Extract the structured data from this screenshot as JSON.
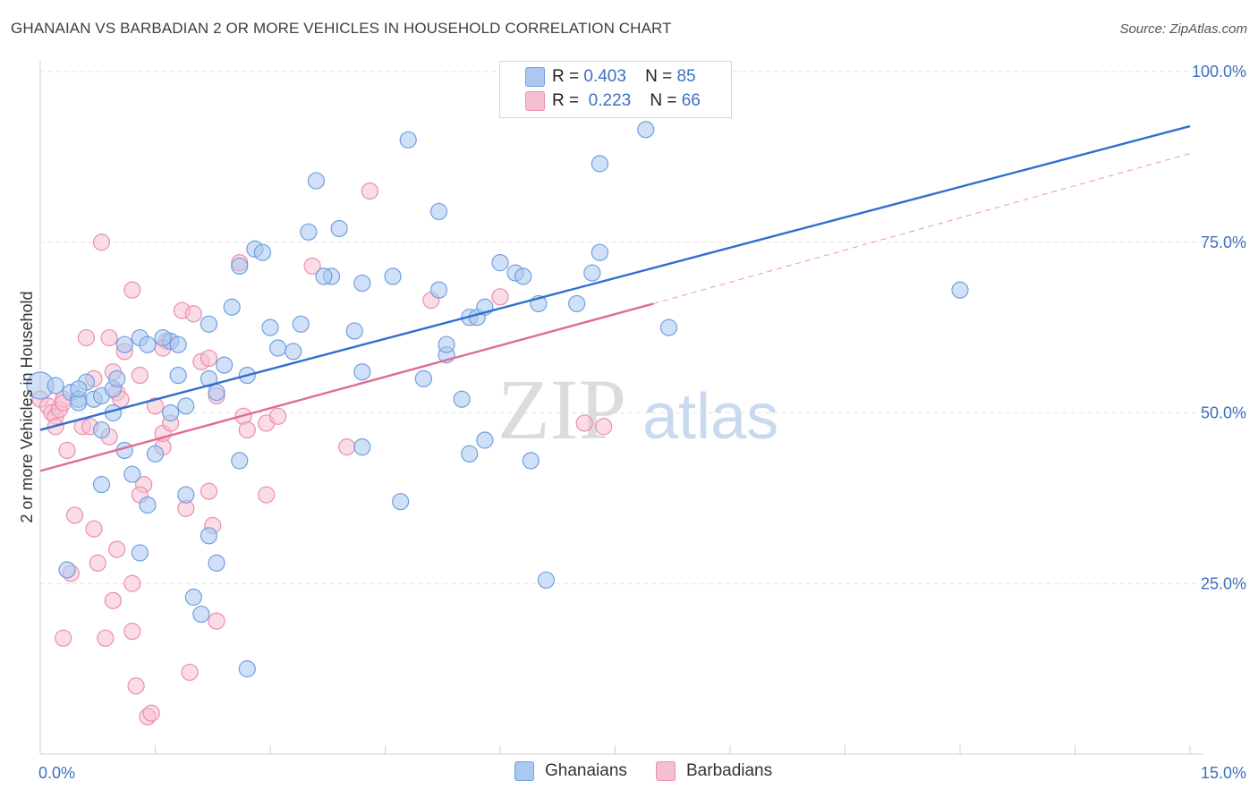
{
  "header": {
    "title": "GHANAIAN VS BARBADIAN 2 OR MORE VEHICLES IN HOUSEHOLD CORRELATION CHART",
    "source": "Source: ZipAtlas.com"
  },
  "watermark": {
    "zip": "ZIP",
    "atlas": "atlas"
  },
  "legend_top": {
    "rows": [
      {
        "r_label": "R =",
        "r_value": "0.403",
        "n_label": "N =",
        "n_value": "85"
      },
      {
        "r_label": "R =",
        "r_value": "0.223",
        "n_label": "N =",
        "n_value": "66"
      }
    ]
  },
  "legend_bottom": {
    "items": [
      "Ghanaians",
      "Barbadians"
    ]
  },
  "colors": {
    "blue_fill": "#aac8f0",
    "blue_stroke": "#6f9fe0",
    "blue_line": "#2f6fcf",
    "pink_fill": "#f6bfd1",
    "pink_stroke": "#ec8eac",
    "pink_line": "#e06a94",
    "tick_label": "#3d6fbf",
    "grid": "#e3e3e3"
  },
  "chart_data": {
    "type": "scatter",
    "title": "GHANAIAN VS BARBADIAN 2 OR MORE VEHICLES IN HOUSEHOLD CORRELATION CHART",
    "xlabel": "",
    "ylabel": "2 or more Vehicles in Household",
    "xlim": [
      0,
      15
    ],
    "ylim": [
      0,
      100
    ],
    "x_tick_labels": [
      "0.0%",
      "15.0%"
    ],
    "y_ticks": [
      25,
      50,
      75,
      100
    ],
    "y_tick_labels": [
      "25.0%",
      "50.0%",
      "75.0%",
      "100.0%"
    ],
    "grid": true,
    "legend_position": "top-center",
    "series": [
      {
        "name": "Ghanaians",
        "color": "#aac8f0",
        "trend": {
          "x0": 0,
          "y0": 47.5,
          "x1": 15,
          "y1": 92.0,
          "dashed_from": null
        },
        "points": [
          [
            0.0,
            54.0
          ],
          [
            0.2,
            54.0
          ],
          [
            0.4,
            53.0
          ],
          [
            0.5,
            52.0
          ],
          [
            0.7,
            52.0
          ],
          [
            0.5,
            51.5
          ],
          [
            0.6,
            54.5
          ],
          [
            0.8,
            52.5
          ],
          [
            0.95,
            53.5
          ],
          [
            1.0,
            55.0
          ],
          [
            0.95,
            50.0
          ],
          [
            0.8,
            47.5
          ],
          [
            1.1,
            44.5
          ],
          [
            0.8,
            39.5
          ],
          [
            1.2,
            41.0
          ],
          [
            1.4,
            36.5
          ],
          [
            1.3,
            29.5
          ],
          [
            0.35,
            27.0
          ],
          [
            1.3,
            61.0
          ],
          [
            1.4,
            60.0
          ],
          [
            1.1,
            60.0
          ],
          [
            1.7,
            60.5
          ],
          [
            1.8,
            55.5
          ],
          [
            1.7,
            50.0
          ],
          [
            1.9,
            51.0
          ],
          [
            1.5,
            44.0
          ],
          [
            1.9,
            38.0
          ],
          [
            2.2,
            63.0
          ],
          [
            2.4,
            57.0
          ],
          [
            2.2,
            55.0
          ],
          [
            2.3,
            53.0
          ],
          [
            2.2,
            32.0
          ],
          [
            2.3,
            28.0
          ],
          [
            2.0,
            23.0
          ],
          [
            2.1,
            20.5
          ],
          [
            2.5,
            65.5
          ],
          [
            2.6,
            71.5
          ],
          [
            2.8,
            74.0
          ],
          [
            2.9,
            73.5
          ],
          [
            3.0,
            62.5
          ],
          [
            2.7,
            55.5
          ],
          [
            2.6,
            43.0
          ],
          [
            3.3,
            59.0
          ],
          [
            3.5,
            76.5
          ],
          [
            3.6,
            84.0
          ],
          [
            3.8,
            70.0
          ],
          [
            3.7,
            70.0
          ],
          [
            3.4,
            63.0
          ],
          [
            3.9,
            77.0
          ],
          [
            4.1,
            62.0
          ],
          [
            4.2,
            69.0
          ],
          [
            4.2,
            56.0
          ],
          [
            4.2,
            45.0
          ],
          [
            4.8,
            90.0
          ],
          [
            4.6,
            70.0
          ],
          [
            4.7,
            37.0
          ],
          [
            5.0,
            55.0
          ],
          [
            5.2,
            79.5
          ],
          [
            5.2,
            68.0
          ],
          [
            5.3,
            58.5
          ],
          [
            5.3,
            60.0
          ],
          [
            5.6,
            64.0
          ],
          [
            5.5,
            52.0
          ],
          [
            5.7,
            64.0
          ],
          [
            5.8,
            65.5
          ],
          [
            6.0,
            72.0
          ],
          [
            6.2,
            70.5
          ],
          [
            6.3,
            70.0
          ],
          [
            5.8,
            46.0
          ],
          [
            5.6,
            44.0
          ],
          [
            6.4,
            43.0
          ],
          [
            6.6,
            25.5
          ],
          [
            7.0,
            66.0
          ],
          [
            7.2,
            70.5
          ],
          [
            7.3,
            73.5
          ],
          [
            7.3,
            86.5
          ],
          [
            7.9,
            91.5
          ],
          [
            8.2,
            62.5
          ],
          [
            12.0,
            68.0
          ],
          [
            2.7,
            12.5
          ],
          [
            1.8,
            60.0
          ],
          [
            0.5,
            53.5
          ],
          [
            3.1,
            59.5
          ],
          [
            6.5,
            66.0
          ],
          [
            1.6,
            61.0
          ]
        ]
      },
      {
        "name": "Barbadians",
        "color": "#f6bfd1",
        "trend": {
          "x0": 0,
          "y0": 41.5,
          "x1": 8.0,
          "y1": 66.0,
          "dashed_from": 8.0,
          "dashed_x1": 15,
          "dashed_y1": 88.0
        },
        "points": [
          [
            0.0,
            52.0
          ],
          [
            0.1,
            51.0
          ],
          [
            0.15,
            50.0
          ],
          [
            0.2,
            49.5
          ],
          [
            0.25,
            50.5
          ],
          [
            0.3,
            52.0
          ],
          [
            0.3,
            51.5
          ],
          [
            0.2,
            48.0
          ],
          [
            0.35,
            44.5
          ],
          [
            0.45,
            35.0
          ],
          [
            0.4,
            26.5
          ],
          [
            0.3,
            17.0
          ],
          [
            0.55,
            48.0
          ],
          [
            0.65,
            48.0
          ],
          [
            0.6,
            61.0
          ],
          [
            0.7,
            55.0
          ],
          [
            0.7,
            33.0
          ],
          [
            0.75,
            28.0
          ],
          [
            0.9,
            46.5
          ],
          [
            0.95,
            56.0
          ],
          [
            1.0,
            53.0
          ],
          [
            1.0,
            30.0
          ],
          [
            0.95,
            22.5
          ],
          [
            0.85,
            17.0
          ],
          [
            0.8,
            75.0
          ],
          [
            1.1,
            59.0
          ],
          [
            1.2,
            68.0
          ],
          [
            1.2,
            18.0
          ],
          [
            1.25,
            10.0
          ],
          [
            1.3,
            55.5
          ],
          [
            1.35,
            39.5
          ],
          [
            1.3,
            38.0
          ],
          [
            1.2,
            25.0
          ],
          [
            1.4,
            5.5
          ],
          [
            1.45,
            6.0
          ],
          [
            1.5,
            51.0
          ],
          [
            1.6,
            45.0
          ],
          [
            1.6,
            47.0
          ],
          [
            1.7,
            48.5
          ],
          [
            1.65,
            60.5
          ],
          [
            1.6,
            59.5
          ],
          [
            1.85,
            65.0
          ],
          [
            1.9,
            36.0
          ],
          [
            1.95,
            12.0
          ],
          [
            2.0,
            64.5
          ],
          [
            2.1,
            57.5
          ],
          [
            2.2,
            38.5
          ],
          [
            2.25,
            33.5
          ],
          [
            2.3,
            52.5
          ],
          [
            2.3,
            19.5
          ],
          [
            2.6,
            72.0
          ],
          [
            2.65,
            49.5
          ],
          [
            2.7,
            47.5
          ],
          [
            2.95,
            48.5
          ],
          [
            2.95,
            38.0
          ],
          [
            3.1,
            49.5
          ],
          [
            3.55,
            71.5
          ],
          [
            4.0,
            45.0
          ],
          [
            4.3,
            82.5
          ],
          [
            5.1,
            66.5
          ],
          [
            6.0,
            67.0
          ],
          [
            7.1,
            48.5
          ],
          [
            2.2,
            58.0
          ],
          [
            0.9,
            61.0
          ],
          [
            1.05,
            52.0
          ],
          [
            7.35,
            48.0
          ]
        ]
      }
    ]
  }
}
